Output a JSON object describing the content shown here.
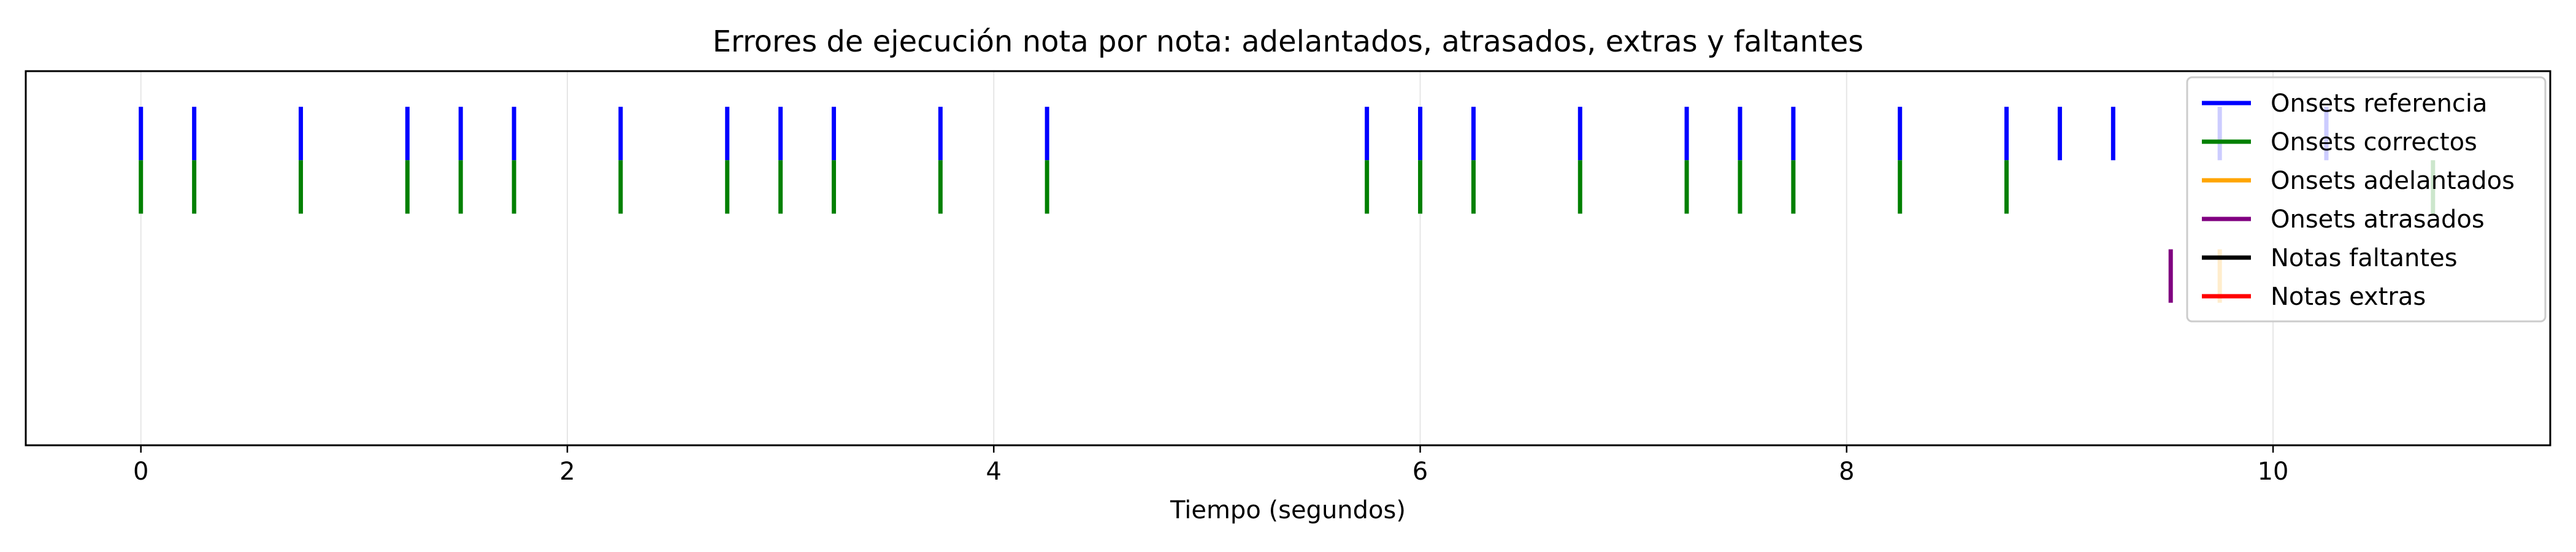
{
  "chart_data": {
    "type": "event-raster",
    "title": "Errores de ejecución nota por nota: adelantados, atrasados, extras y faltantes",
    "xlabel": "Tiempo (segundos)",
    "ylabel": "",
    "xlim": [
      -0.54,
      11.3
    ],
    "ylim": [
      0,
      4.2
    ],
    "xticks": [
      0,
      2,
      4,
      6,
      8,
      10
    ],
    "grid": "vertical",
    "legend_position": "upper-right",
    "series": [
      {
        "name": "Onsets referencia",
        "color": "#0000ff",
        "y_range": [
          3.2,
          3.8
        ],
        "onsets": [
          0,
          0.25,
          0.75,
          1.25,
          1.5,
          1.75,
          2.25,
          2.75,
          3.0,
          3.25,
          3.75,
          4.25,
          5.75,
          6.0,
          6.25,
          6.75,
          7.25,
          7.5,
          7.75,
          8.25,
          8.75,
          9.0,
          9.25,
          9.75,
          10.25
        ]
      },
      {
        "name": "Onsets correctos",
        "color": "#008000",
        "y_range": [
          2.6,
          3.2
        ],
        "onsets": [
          0,
          0.25,
          0.75,
          1.25,
          1.5,
          1.75,
          2.25,
          2.75,
          3.0,
          3.25,
          3.75,
          4.25,
          5.75,
          6.0,
          6.25,
          6.75,
          7.25,
          7.5,
          7.75,
          8.25,
          8.75,
          10.75
        ]
      },
      {
        "name": "Onsets adelantados",
        "color": "#ffa500",
        "y_range": [
          1.6,
          2.2
        ],
        "onsets": [
          9.75
        ]
      },
      {
        "name": "Onsets atrasados",
        "color": "#800080",
        "y_range": [
          1.6,
          2.2
        ],
        "onsets": [
          9.52
        ]
      },
      {
        "name": "Notas faltantes",
        "color": "#000000",
        "y_range": [
          1.0,
          1.6
        ],
        "onsets": []
      },
      {
        "name": "Notas extras",
        "color": "#ff0000",
        "y_range": [
          0.4,
          1.0
        ],
        "onsets": []
      }
    ]
  }
}
